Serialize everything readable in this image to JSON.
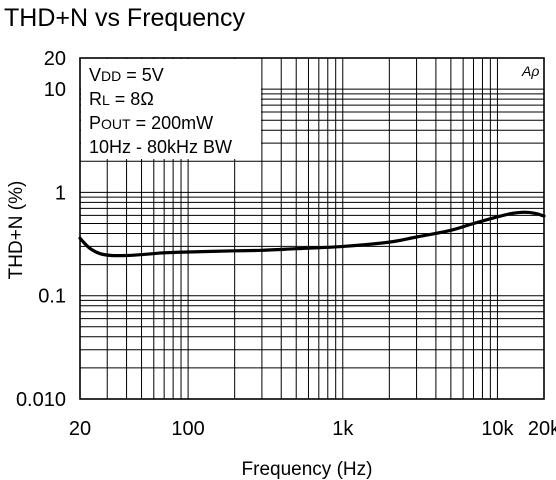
{
  "chart_data": {
    "type": "line",
    "title": "THD+N vs Frequency",
    "xlabel": "Frequency (Hz)",
    "ylabel": "THD+N (%)",
    "x_scale": "log",
    "y_scale": "log",
    "xlim": [
      20,
      20000
    ],
    "ylim": [
      0.01,
      20
    ],
    "grid": true,
    "x_ticks": [
      {
        "value": 20,
        "label": "20"
      },
      {
        "value": 100,
        "label": "100"
      },
      {
        "value": 1000,
        "label": "1k"
      },
      {
        "value": 10000,
        "label": "10k"
      },
      {
        "value": 20000,
        "label": "20k"
      }
    ],
    "y_ticks": [
      {
        "value": 20,
        "label": "20"
      },
      {
        "value": 10,
        "label": "10"
      },
      {
        "value": 1,
        "label": "1"
      },
      {
        "value": 0.1,
        "label": "0.1"
      },
      {
        "value": 0.01,
        "label": "0.010"
      }
    ],
    "conditions": [
      {
        "main": "V",
        "sub": "DD",
        "rest": " = 5V"
      },
      {
        "main": "R",
        "sub": "L",
        "rest": " = 8Ω"
      },
      {
        "main": "P",
        "sub": "OUT",
        "rest": " = 200mW"
      },
      {
        "main": "10Hz - 80kHz BW",
        "sub": "",
        "rest": ""
      }
    ],
    "watermark": "Aρ",
    "series": [
      {
        "x": [
          20,
          23,
          27,
          32,
          40,
          50,
          70,
          100,
          200,
          300,
          500,
          1000,
          2000,
          3000,
          5000,
          7000,
          10000,
          12000,
          14000,
          16000,
          18000,
          20000
        ],
        "y": [
          0.36,
          0.29,
          0.255,
          0.245,
          0.245,
          0.25,
          0.26,
          0.265,
          0.272,
          0.275,
          0.285,
          0.3,
          0.33,
          0.37,
          0.43,
          0.5,
          0.58,
          0.62,
          0.64,
          0.64,
          0.62,
          0.59
        ]
      }
    ]
  }
}
